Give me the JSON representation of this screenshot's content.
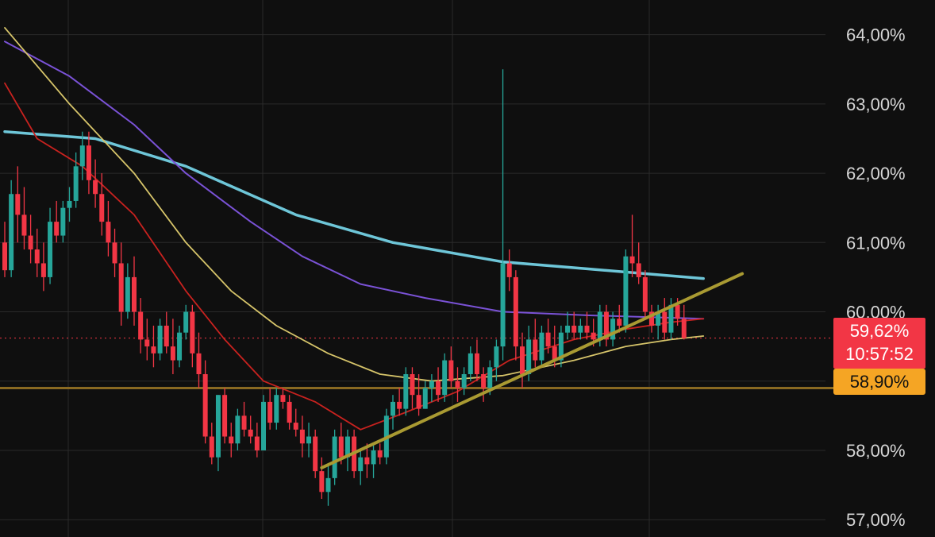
{
  "chart_data": {
    "type": "candlestick",
    "title": "",
    "xlabel": "",
    "ylabel": "",
    "ylim": [
      56.75,
      64.5
    ],
    "y_ticks": [
      "64,00%",
      "63,00%",
      "62,00%",
      "61,00%",
      "60,00%",
      "58,00%",
      "57,00%"
    ],
    "y_tick_values": [
      64,
      63,
      62,
      61,
      60,
      58,
      57
    ],
    "grid": true,
    "current_price": {
      "value": 59.62,
      "label": "59,62%",
      "countdown": "10:57:52",
      "color": "#f23645"
    },
    "horizontal_level": {
      "value": 58.9,
      "label": "58,90%",
      "color": "#f5a524"
    },
    "colors": {
      "up": "#26a69a",
      "down": "#f23645",
      "grid": "#2a2a2a",
      "background": "#0f0f0f"
    },
    "candles": [
      [
        61.0,
        61.3,
        60.5,
        60.6
      ],
      [
        60.6,
        61.9,
        60.5,
        61.7
      ],
      [
        61.7,
        62.1,
        61.0,
        61.4
      ],
      [
        61.4,
        61.8,
        60.9,
        61.1
      ],
      [
        61.1,
        61.4,
        60.7,
        60.9
      ],
      [
        60.9,
        61.2,
        60.5,
        60.7
      ],
      [
        60.7,
        61.0,
        60.3,
        60.5
      ],
      [
        60.5,
        61.5,
        60.4,
        61.3
      ],
      [
        61.3,
        61.6,
        61.0,
        61.1
      ],
      [
        61.1,
        61.6,
        61.0,
        61.5
      ],
      [
        61.5,
        61.8,
        61.3,
        61.6
      ],
      [
        61.6,
        62.3,
        61.5,
        62.1
      ],
      [
        62.1,
        62.6,
        61.9,
        62.4
      ],
      [
        62.4,
        62.6,
        61.7,
        61.9
      ],
      [
        61.9,
        62.2,
        61.5,
        61.7
      ],
      [
        61.7,
        62.0,
        61.1,
        61.3
      ],
      [
        61.3,
        61.6,
        60.8,
        61.0
      ],
      [
        61.0,
        61.2,
        60.5,
        60.7
      ],
      [
        60.7,
        61.0,
        59.8,
        60.0
      ],
      [
        60.0,
        60.7,
        59.9,
        60.5
      ],
      [
        60.5,
        60.8,
        59.8,
        60.0
      ],
      [
        60.0,
        60.2,
        59.4,
        59.6
      ],
      [
        59.6,
        59.9,
        59.3,
        59.5
      ],
      [
        59.5,
        59.8,
        59.2,
        59.4
      ],
      [
        59.4,
        59.9,
        59.3,
        59.8
      ],
      [
        59.8,
        60.0,
        59.4,
        59.5
      ],
      [
        59.5,
        59.9,
        59.1,
        59.3
      ],
      [
        59.3,
        59.8,
        59.2,
        59.7
      ],
      [
        59.7,
        60.1,
        59.6,
        60.0
      ],
      [
        60.0,
        60.1,
        59.2,
        59.4
      ],
      [
        59.4,
        59.7,
        58.9,
        59.1
      ],
      [
        59.1,
        59.3,
        58.1,
        58.2
      ],
      [
        58.2,
        58.4,
        57.8,
        57.9
      ],
      [
        57.9,
        58.8,
        57.7,
        58.8
      ],
      [
        58.8,
        58.9,
        58.1,
        58.2
      ],
      [
        58.2,
        58.4,
        57.9,
        58.1
      ],
      [
        58.1,
        58.6,
        58.0,
        58.5
      ],
      [
        58.5,
        58.7,
        58.2,
        58.3
      ],
      [
        58.3,
        58.5,
        58.1,
        58.2
      ],
      [
        58.2,
        58.4,
        57.9,
        58.0
      ],
      [
        58.0,
        58.8,
        58.0,
        58.7
      ],
      [
        58.7,
        58.9,
        58.3,
        58.4
      ],
      [
        58.4,
        58.9,
        58.3,
        58.8
      ],
      [
        58.8,
        58.9,
        58.6,
        58.7
      ],
      [
        58.7,
        58.8,
        58.3,
        58.4
      ],
      [
        58.4,
        58.6,
        58.2,
        58.3
      ],
      [
        58.3,
        58.5,
        57.9,
        58.1
      ],
      [
        58.1,
        58.4,
        57.9,
        58.2
      ],
      [
        58.2,
        58.3,
        57.6,
        57.7
      ],
      [
        57.7,
        57.9,
        57.3,
        57.4
      ],
      [
        57.4,
        57.8,
        57.2,
        57.6
      ],
      [
        57.6,
        58.3,
        57.5,
        58.2
      ],
      [
        58.2,
        58.4,
        57.8,
        57.9
      ],
      [
        57.9,
        58.3,
        57.7,
        58.2
      ],
      [
        58.2,
        58.3,
        57.6,
        57.7
      ],
      [
        57.7,
        58.0,
        57.5,
        57.9
      ],
      [
        57.9,
        58.1,
        57.6,
        57.8
      ],
      [
        57.8,
        58.1,
        57.6,
        58.0
      ],
      [
        58.0,
        58.1,
        57.8,
        57.9
      ],
      [
        57.9,
        58.6,
        57.8,
        58.5
      ],
      [
        58.5,
        58.8,
        58.3,
        58.7
      ],
      [
        58.7,
        58.9,
        58.5,
        58.6
      ],
      [
        58.6,
        59.2,
        58.5,
        59.1
      ],
      [
        59.1,
        59.2,
        58.6,
        58.8
      ],
      [
        58.8,
        59.1,
        58.5,
        58.6
      ],
      [
        58.6,
        59.0,
        58.6,
        58.9
      ],
      [
        58.9,
        59.1,
        58.7,
        59.0
      ],
      [
        59.0,
        59.2,
        58.7,
        58.8
      ],
      [
        58.8,
        59.4,
        58.7,
        59.3
      ],
      [
        59.3,
        59.5,
        58.9,
        59.0
      ],
      [
        59.0,
        59.2,
        58.7,
        58.9
      ],
      [
        58.9,
        59.2,
        58.8,
        59.1
      ],
      [
        59.1,
        59.5,
        59.0,
        59.4
      ],
      [
        59.4,
        59.6,
        59.0,
        59.1
      ],
      [
        59.1,
        59.2,
        58.7,
        58.9
      ],
      [
        58.9,
        59.3,
        58.8,
        59.2
      ],
      [
        59.2,
        59.6,
        59.0,
        59.5
      ],
      [
        59.5,
        63.5,
        59.3,
        60.7
      ],
      [
        60.7,
        60.9,
        60.3,
        60.5
      ],
      [
        60.5,
        60.6,
        59.3,
        59.5
      ],
      [
        59.5,
        59.7,
        58.9,
        59.1
      ],
      [
        59.1,
        59.8,
        59.0,
        59.6
      ],
      [
        59.6,
        59.9,
        59.2,
        59.3
      ],
      [
        59.3,
        59.8,
        59.2,
        59.7
      ],
      [
        59.7,
        59.9,
        59.4,
        59.5
      ],
      [
        59.5,
        59.8,
        59.2,
        59.3
      ],
      [
        59.3,
        59.8,
        59.2,
        59.7
      ],
      [
        59.7,
        60.0,
        59.6,
        59.8
      ],
      [
        59.8,
        60.0,
        59.6,
        59.7
      ],
      [
        59.7,
        59.9,
        59.6,
        59.8
      ],
      [
        59.8,
        60.0,
        59.6,
        59.7
      ],
      [
        59.7,
        59.9,
        59.5,
        59.6
      ],
      [
        59.6,
        60.1,
        59.5,
        60.0
      ],
      [
        60.0,
        60.1,
        59.5,
        59.6
      ],
      [
        59.6,
        60.0,
        59.5,
        59.9
      ],
      [
        59.9,
        60.1,
        59.7,
        59.8
      ],
      [
        59.8,
        60.9,
        59.7,
        60.8
      ],
      [
        60.8,
        61.4,
        60.5,
        60.7
      ],
      [
        60.7,
        61.0,
        60.4,
        60.5
      ],
      [
        60.5,
        60.6,
        59.9,
        60.0
      ],
      [
        60.0,
        60.1,
        59.7,
        59.8
      ],
      [
        59.8,
        60.1,
        59.6,
        60.0
      ],
      [
        60.0,
        60.2,
        59.6,
        59.7
      ],
      [
        59.7,
        60.2,
        59.6,
        60.1
      ],
      [
        60.1,
        60.2,
        59.8,
        59.9
      ],
      [
        59.9,
        60.1,
        59.6,
        59.62
      ]
    ],
    "moving_averages": [
      {
        "color": "#6ec6d8",
        "width": 3.5,
        "points": [
          [
            0,
            62.6
          ],
          [
            14,
            62.5
          ],
          [
            28,
            62.1
          ],
          [
            45,
            61.4
          ],
          [
            60,
            61.0
          ],
          [
            77,
            60.72
          ],
          [
            90,
            60.62
          ],
          [
            108,
            60.48
          ]
        ]
      },
      {
        "color": "#7a52d6",
        "width": 2,
        "points": [
          [
            0,
            63.9
          ],
          [
            10,
            63.4
          ],
          [
            20,
            62.7
          ],
          [
            28,
            62.0
          ],
          [
            38,
            61.3
          ],
          [
            46,
            60.8
          ],
          [
            55,
            60.4
          ],
          [
            65,
            60.2
          ],
          [
            77,
            60.0
          ],
          [
            90,
            59.95
          ],
          [
            108,
            59.9
          ]
        ]
      },
      {
        "color": "#d6c46a",
        "width": 1.8,
        "points": [
          [
            0,
            64.1
          ],
          [
            10,
            63.0
          ],
          [
            20,
            62.0
          ],
          [
            28,
            61.0
          ],
          [
            35,
            60.3
          ],
          [
            42,
            59.8
          ],
          [
            50,
            59.4
          ],
          [
            58,
            59.1
          ],
          [
            66,
            59.0
          ],
          [
            77,
            59.08
          ],
          [
            88,
            59.3
          ],
          [
            96,
            59.5
          ],
          [
            103,
            59.6
          ],
          [
            108,
            59.65
          ]
        ]
      },
      {
        "color": "#c8221f",
        "width": 1.8,
        "points": [
          [
            0,
            63.3
          ],
          [
            5,
            62.5
          ],
          [
            12,
            62.1
          ],
          [
            20,
            61.4
          ],
          [
            28,
            60.3
          ],
          [
            34,
            59.6
          ],
          [
            40,
            59.0
          ],
          [
            48,
            58.7
          ],
          [
            55,
            58.3
          ],
          [
            62,
            58.55
          ],
          [
            70,
            58.85
          ],
          [
            78,
            59.3
          ],
          [
            88,
            59.6
          ],
          [
            96,
            59.75
          ],
          [
            103,
            59.85
          ],
          [
            108,
            59.9
          ]
        ]
      }
    ],
    "trendline": {
      "color": "#a99a32",
      "from": [
        49,
        57.75
      ],
      "to": [
        114,
        60.55
      ]
    }
  }
}
